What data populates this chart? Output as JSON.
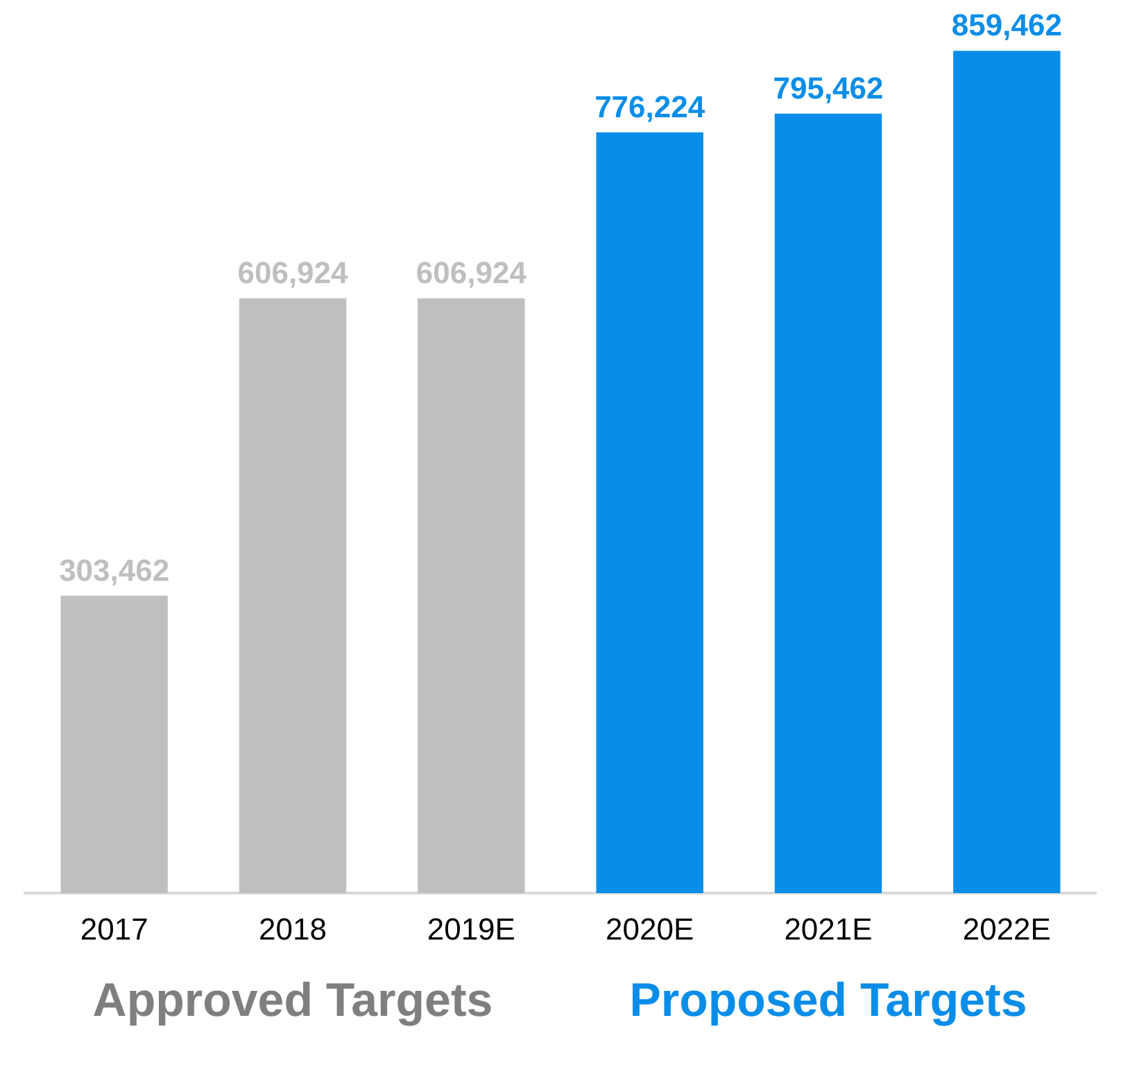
{
  "chart_data": {
    "type": "bar",
    "categories": [
      "2017",
      "2018",
      "2019E",
      "2020E",
      "2021E",
      "2022E"
    ],
    "series": [
      {
        "name": "Approved Targets",
        "color": "#bfbfbf",
        "values": [
          303462,
          606924,
          606924,
          null,
          null,
          null
        ],
        "value_labels": [
          "303,462",
          "606,924",
          "606,924",
          null,
          null,
          null
        ]
      },
      {
        "name": "Proposed Targets",
        "color": "#0a8de8",
        "values": [
          null,
          null,
          null,
          776224,
          795462,
          859462
        ],
        "value_labels": [
          null,
          null,
          null,
          "776,224",
          "795,462",
          "859,462"
        ]
      }
    ],
    "stacked": true,
    "tick_labels": "x",
    "grid": false,
    "legend": "bottom"
  }
}
